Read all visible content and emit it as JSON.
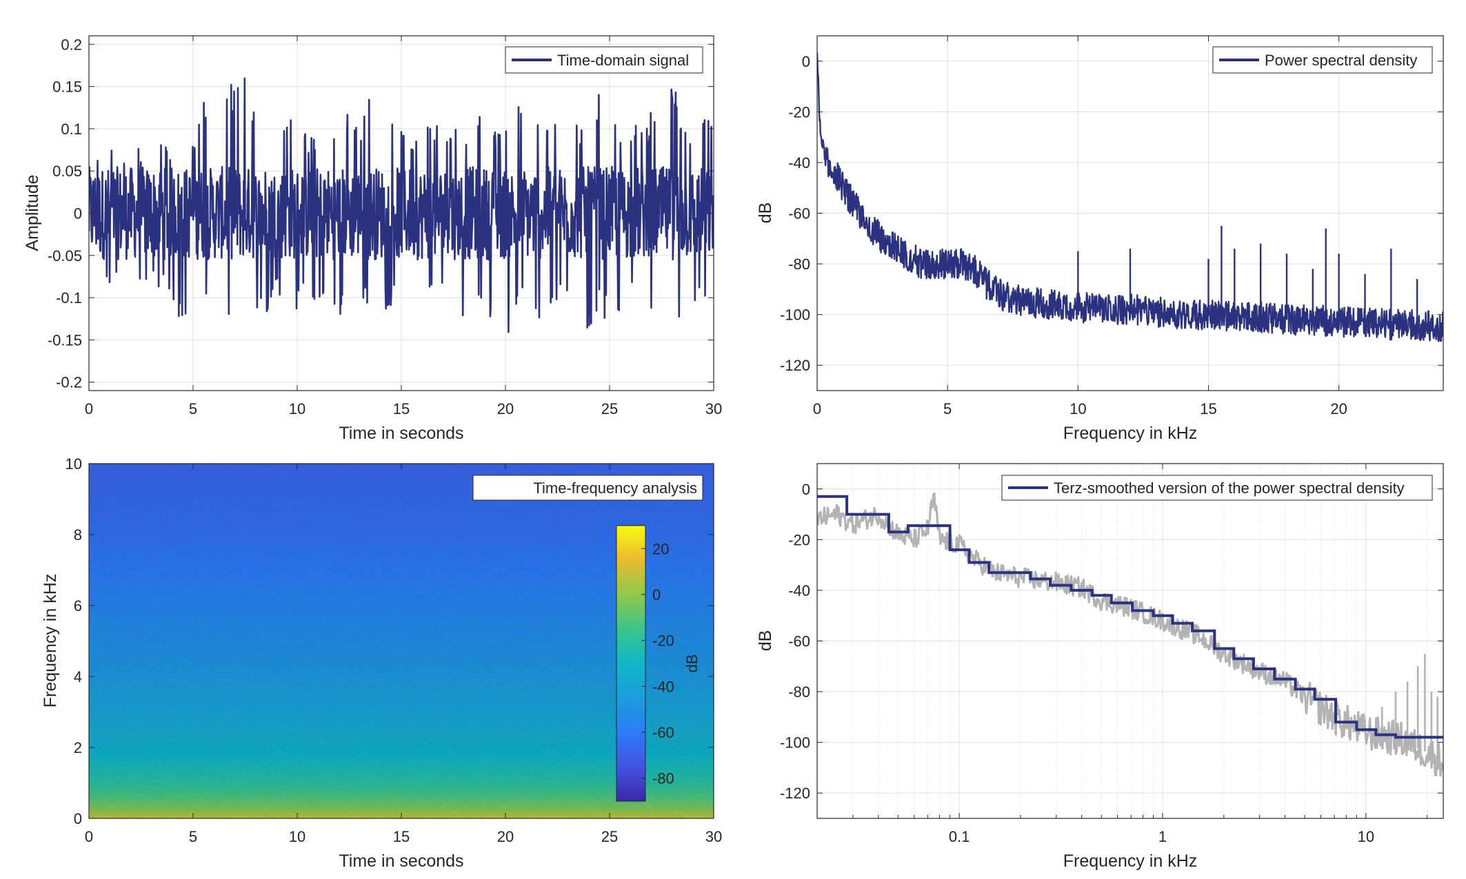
{
  "colors": {
    "series_main": "#2b3280",
    "raw_gray": "#b3b3b3",
    "grid": "#dfdfdf",
    "axis": "#262626"
  },
  "chart_data": [
    {
      "id": "time-domain",
      "type": "line",
      "xlabel": "Time in seconds",
      "ylabel": "Amplitude",
      "xlim": [
        0,
        30
      ],
      "ylim": [
        -0.21,
        0.21
      ],
      "xticks": [
        0,
        5,
        10,
        15,
        20,
        25,
        30
      ],
      "xtick_labels": [
        "0",
        "5",
        "10",
        "15",
        "20",
        "25",
        "30"
      ],
      "yticks": [
        -0.2,
        -0.15,
        -0.1,
        -0.05,
        0,
        0.05,
        0.1,
        0.15,
        0.2
      ],
      "ytick_labels": [
        "-0.2",
        "-0.15",
        "-0.1",
        "-0.05",
        "0",
        "0.05",
        "0.1",
        "0.15",
        "0.2"
      ],
      "grid": true,
      "legend_position": "top-right",
      "series": [
        {
          "name": "Time-domain signal",
          "color": "#2b3280",
          "x": [
            0,
            0.5,
            1,
            1.5,
            2,
            2.5,
            3,
            3.5,
            4,
            4.5,
            5,
            5.5,
            6,
            6.5,
            7,
            7.5,
            8,
            8.5,
            9,
            9.5,
            10,
            10.5,
            11,
            11.5,
            12,
            12.5,
            13,
            13.5,
            14,
            14.5,
            15,
            15.5,
            16,
            16.5,
            17,
            17.5,
            18,
            18.5,
            19,
            19.5,
            20,
            20.5,
            21,
            21.5,
            22,
            22.5,
            23,
            23.5,
            24,
            24.5,
            25,
            25.5,
            26,
            26.5,
            27,
            27.5,
            28,
            28.5,
            29,
            29.5,
            30
          ],
          "y_max": [
            0.08,
            0.07,
            0.09,
            0.06,
            0.07,
            0.08,
            0.06,
            0.09,
            0.07,
            0.1,
            0.09,
            0.15,
            0.12,
            0.14,
            0.16,
            0.17,
            0.12,
            0.15,
            0.1,
            0.12,
            0.11,
            0.09,
            0.1,
            0.1,
            0.11,
            0.12,
            0.1,
            0.15,
            0.12,
            0.11,
            0.1,
            0.09,
            0.13,
            0.1,
            0.12,
            0.1,
            0.11,
            0.09,
            0.14,
            0.1,
            0.11,
            0.13,
            0.12,
            0.11,
            0.12,
            0.14,
            0.1,
            0.11,
            0.09,
            0.15,
            0.12,
            0.1,
            0.11,
            0.1,
            0.12,
            0.13,
            0.17,
            0.11,
            0.1,
            0.12,
            0.1
          ],
          "y_min": [
            -0.08,
            -0.07,
            -0.09,
            -0.08,
            -0.1,
            -0.09,
            -0.08,
            -0.09,
            -0.1,
            -0.15,
            -0.14,
            -0.11,
            -0.12,
            -0.14,
            -0.15,
            -0.16,
            -0.13,
            -0.12,
            -0.1,
            -0.11,
            -0.12,
            -0.1,
            -0.11,
            -0.1,
            -0.12,
            -0.13,
            -0.11,
            -0.12,
            -0.13,
            -0.11,
            -0.1,
            -0.11,
            -0.12,
            -0.1,
            -0.11,
            -0.12,
            -0.13,
            -0.1,
            -0.11,
            -0.14,
            -0.15,
            -0.12,
            -0.11,
            -0.13,
            -0.12,
            -0.11,
            -0.1,
            -0.12,
            -0.16,
            -0.12,
            -0.13,
            -0.12,
            -0.11,
            -0.1,
            -0.12,
            -0.11,
            -0.12,
            -0.13,
            -0.11,
            -0.1,
            -0.1
          ]
        }
      ]
    },
    {
      "id": "psd",
      "type": "line",
      "xlabel": "Frequency in kHz",
      "ylabel": "dB",
      "xlim": [
        0,
        24
      ],
      "ylim": [
        -130,
        10
      ],
      "xticks": [
        0,
        5,
        10,
        15,
        20
      ],
      "xtick_labels": [
        "0",
        "5",
        "10",
        "15",
        "20"
      ],
      "yticks": [
        -120,
        -100,
        -80,
        -60,
        -40,
        -20,
        0
      ],
      "ytick_labels": [
        "-120",
        "-100",
        "-80",
        "-60",
        "-40",
        "-20",
        "0"
      ],
      "grid": true,
      "legend_position": "top-right",
      "series": [
        {
          "name": "Power spectral density",
          "color": "#2b3280",
          "x": [
            0,
            0.1,
            0.3,
            0.6,
            1,
            1.5,
            2,
            2.5,
            3,
            3.5,
            4,
            4.5,
            5,
            5.5,
            6,
            6.5,
            7,
            7.5,
            8,
            9,
            10,
            11,
            12,
            13,
            14,
            15,
            16,
            17,
            18,
            19,
            20,
            21,
            22,
            23,
            24
          ],
          "y": [
            5,
            -25,
            -38,
            -42,
            -50,
            -58,
            -66,
            -70,
            -74,
            -77,
            -80,
            -80,
            -80,
            -80,
            -82,
            -88,
            -92,
            -94,
            -95,
            -96,
            -97,
            -98,
            -98,
            -99,
            -100,
            -100,
            -101,
            -101,
            -102,
            -102,
            -103,
            -103,
            -104,
            -104,
            -105
          ],
          "peaks": [
            {
              "x": 10,
              "y": -75
            },
            {
              "x": 12,
              "y": -74
            },
            {
              "x": 15,
              "y": -78
            },
            {
              "x": 15.5,
              "y": -65
            },
            {
              "x": 16,
              "y": -74
            },
            {
              "x": 17,
              "y": -72
            },
            {
              "x": 18,
              "y": -76
            },
            {
              "x": 19,
              "y": -82
            },
            {
              "x": 19.5,
              "y": -66
            },
            {
              "x": 20,
              "y": -76
            },
            {
              "x": 21,
              "y": -84
            },
            {
              "x": 22,
              "y": -74
            },
            {
              "x": 23,
              "y": -86
            }
          ]
        }
      ]
    },
    {
      "id": "spectrogram",
      "type": "heatmap",
      "xlabel": "Time in seconds",
      "ylabel": "Frequency in kHz",
      "xlim": [
        0,
        30
      ],
      "ylim": [
        0,
        10
      ],
      "xticks": [
        0,
        5,
        10,
        15,
        20,
        25,
        30
      ],
      "xtick_labels": [
        "0",
        "5",
        "10",
        "15",
        "20",
        "25",
        "30"
      ],
      "yticks": [
        0,
        2,
        4,
        6,
        8,
        10
      ],
      "ytick_labels": [
        "0",
        "2",
        "4",
        "6",
        "8",
        "10"
      ],
      "legend_position": "top-right",
      "legend_label": "Time-frequency analysis",
      "colormap": "parula",
      "colorbar": {
        "label": "dB",
        "range": [
          -90,
          30
        ],
        "ticks": [
          20,
          0,
          -20,
          -40,
          -60,
          -80
        ],
        "tick_labels": [
          "20",
          "0",
          "-20",
          "-40",
          "-60",
          "-80"
        ],
        "position": "inside-right"
      },
      "level_profile": {
        "frequency_khz": [
          0,
          0.3,
          1,
          2,
          3,
          4,
          5,
          6,
          7,
          8,
          9,
          10
        ],
        "db": [
          10,
          -5,
          -20,
          -35,
          -42,
          -48,
          -52,
          -56,
          -60,
          -64,
          -66,
          -68
        ]
      }
    },
    {
      "id": "terz",
      "type": "line",
      "xlabel": "Frequency in kHz",
      "ylabel": "dB",
      "xscale": "log",
      "xlim": [
        0.02,
        24
      ],
      "ylim": [
        -130,
        10
      ],
      "xticks": [
        0.1,
        1,
        10
      ],
      "xtick_labels": [
        "0.1",
        "1",
        "10"
      ],
      "yticks": [
        -120,
        -100,
        -80,
        -60,
        -40,
        -20,
        0
      ],
      "ytick_labels": [
        "-120",
        "-100",
        "-80",
        "-60",
        "-40",
        "-20",
        "0"
      ],
      "grid": true,
      "legend_position": "top-right",
      "series": [
        {
          "name": "Terz-smoothed version of the power spectral density",
          "color": "#2b3280",
          "step_edges": [
            0.02,
            0.028,
            0.045,
            0.056,
            0.09,
            0.112,
            0.14,
            0.178,
            0.224,
            0.28,
            0.355,
            0.45,
            0.56,
            0.71,
            0.9,
            1.12,
            1.4,
            1.8,
            2.24,
            2.8,
            3.55,
            4.5,
            5.6,
            7.1,
            9,
            11.2,
            14,
            24
          ],
          "step_values": [
            -3,
            -10,
            -17,
            -14.5,
            -24,
            -29,
            -33,
            -33,
            -35.5,
            -38,
            -40,
            -42,
            -45,
            -48,
            -50,
            -53,
            -56,
            -63,
            -67,
            -71,
            -75,
            -79,
            -83,
            -92,
            -95,
            -97,
            -98
          ]
        },
        {
          "color": "#b3b3b3",
          "x": [
            0.02,
            0.025,
            0.03,
            0.04,
            0.05,
            0.06,
            0.07,
            0.075,
            0.08,
            0.1,
            0.12,
            0.15,
            0.2,
            0.3,
            0.4,
            0.5,
            0.7,
            1,
            1.5,
            2,
            3,
            4,
            5,
            7,
            10,
            15,
            20,
            24
          ],
          "y": [
            -12,
            -10,
            -14,
            -10,
            -18,
            -20,
            -16,
            -3,
            -20,
            -22,
            -28,
            -33,
            -35,
            -37,
            -39,
            -44,
            -47,
            -52,
            -58,
            -65,
            -72,
            -76,
            -82,
            -90,
            -96,
            -99,
            -104,
            -108
          ],
          "peaks": [
            {
              "x": 12,
              "y": -86
            },
            {
              "x": 14,
              "y": -80
            },
            {
              "x": 16,
              "y": -76
            },
            {
              "x": 18,
              "y": -70
            },
            {
              "x": 19.5,
              "y": -65
            },
            {
              "x": 21,
              "y": -80
            },
            {
              "x": 22.5,
              "y": -82
            }
          ]
        }
      ]
    }
  ]
}
